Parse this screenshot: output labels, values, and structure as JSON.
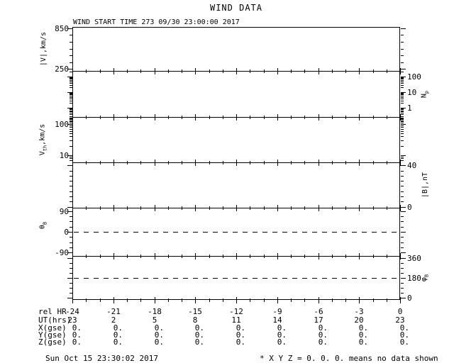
{
  "chart_data": {
    "type": "line",
    "title": "WIND DATA",
    "start_time_label": "WIND START TIME 273 09/30 23:00:00 2017",
    "series": [],
    "x_axis": {
      "range_hours": [
        -24,
        0
      ],
      "major_step": 3,
      "minor_step": 1,
      "label_rows": [
        {
          "name": "rel HR",
          "align": "center",
          "values": [
            "-24",
            "-21",
            "-18",
            "-15",
            "-12",
            "-9",
            "-6",
            "-3",
            "0"
          ]
        },
        {
          "name": "UT(hrs)",
          "align": "center",
          "values": [
            "23",
            "2",
            "5",
            "8",
            "11",
            "14",
            "17",
            "20",
            "23"
          ]
        },
        {
          "name": "X(gse)",
          "align": "right",
          "values": [
            "0.",
            "0.",
            "0.",
            "0.",
            "0.",
            "0.",
            "0.",
            "0.",
            "0."
          ]
        },
        {
          "name": "Y(gse)",
          "align": "right",
          "values": [
            "0.",
            "0.",
            "0.",
            "0.",
            "0.",
            "0.",
            "0.",
            "0.",
            "0."
          ]
        },
        {
          "name": "Z(gse)",
          "align": "right",
          "values": [
            "0.",
            "0.",
            "0.",
            "0.",
            "0.",
            "0.",
            "0.",
            "0.",
            "0."
          ]
        }
      ]
    },
    "panels": [
      {
        "id": "bulk-speed",
        "ylabel": {
          "pre": "|V|,km/s"
        },
        "label_side": "left",
        "scale": "linear",
        "range": [
          220,
          870
        ],
        "major_ticks": [
          {
            "v": 850,
            "label": "850"
          },
          {
            "v": 250,
            "label": "250"
          }
        ],
        "minor_ticks": [
          750,
          650,
          550,
          450,
          350
        ],
        "dashed_at": null
      },
      {
        "id": "proton-density",
        "ylabel": {
          "pre": "N",
          "sub": "p"
        },
        "label_side": "right",
        "scale": "log",
        "range": [
          0.26,
          230
        ],
        "major_ticks": [
          {
            "v": 100,
            "label": "100"
          },
          {
            "v": 10,
            "label": "10"
          },
          {
            "v": 1,
            "label": "1"
          }
        ],
        "minor_ticks": [
          200,
          90,
          80,
          70,
          60,
          50,
          40,
          30,
          20,
          9,
          8,
          7,
          6,
          5,
          4,
          3,
          2,
          0.9,
          0.8,
          0.7,
          0.6,
          0.5,
          0.4,
          0.3
        ],
        "dashed_at": null
      },
      {
        "id": "thermal-speed",
        "ylabel": {
          "pre": "V",
          "sub": "th",
          "post": ",km/s"
        },
        "label_side": "left",
        "scale": "log",
        "range": [
          6,
          167
        ],
        "major_ticks": [
          {
            "v": 100,
            "label": "100"
          },
          {
            "v": 10,
            "label": "10"
          }
        ],
        "minor_ticks": [
          160,
          150,
          140,
          130,
          120,
          110,
          90,
          80,
          70,
          60,
          50,
          40,
          30,
          20,
          9,
          8,
          7,
          6
        ],
        "dashed_at": null
      },
      {
        "id": "field-magnitude",
        "ylabel": {
          "pre": "|B|,nT"
        },
        "label_side": "right",
        "scale": "linear",
        "range": [
          -1,
          43
        ],
        "major_ticks": [
          {
            "v": 40,
            "label": "40"
          },
          {
            "v": 0,
            "label": "0"
          }
        ],
        "minor_ticks": [
          35,
          30,
          25,
          20,
          15,
          10,
          5
        ],
        "dashed_at": null
      },
      {
        "id": "theta-b",
        "ylabel": {
          "pre": "θ",
          "sub": "B"
        },
        "label_side": "left",
        "scale": "linear",
        "range": [
          -105,
          105
        ],
        "major_ticks": [
          {
            "v": 90,
            "label": "90"
          },
          {
            "v": 0,
            "label": "0"
          },
          {
            "v": -90,
            "label": "-90"
          }
        ],
        "minor_ticks": [
          67.5,
          45,
          22.5,
          -22.5,
          -45,
          -67.5
        ],
        "dashed_at": 0
      },
      {
        "id": "phi-b",
        "ylabel": {
          "pre": "φ",
          "sub": "B"
        },
        "label_side": "right",
        "scale": "linear",
        "range": [
          -19,
          379
        ],
        "major_ticks": [
          {
            "v": 360,
            "label": "360"
          },
          {
            "v": 180,
            "label": "180"
          },
          {
            "v": 0,
            "label": "0"
          }
        ],
        "minor_ticks": [
          315,
          270,
          225,
          135,
          90,
          45
        ],
        "dashed_at": 180
      }
    ],
    "footer": {
      "left": "Sun Oct 15 23:30:02 2017",
      "right": "* X Y Z = 0. 0. 0. means no data shown"
    }
  }
}
